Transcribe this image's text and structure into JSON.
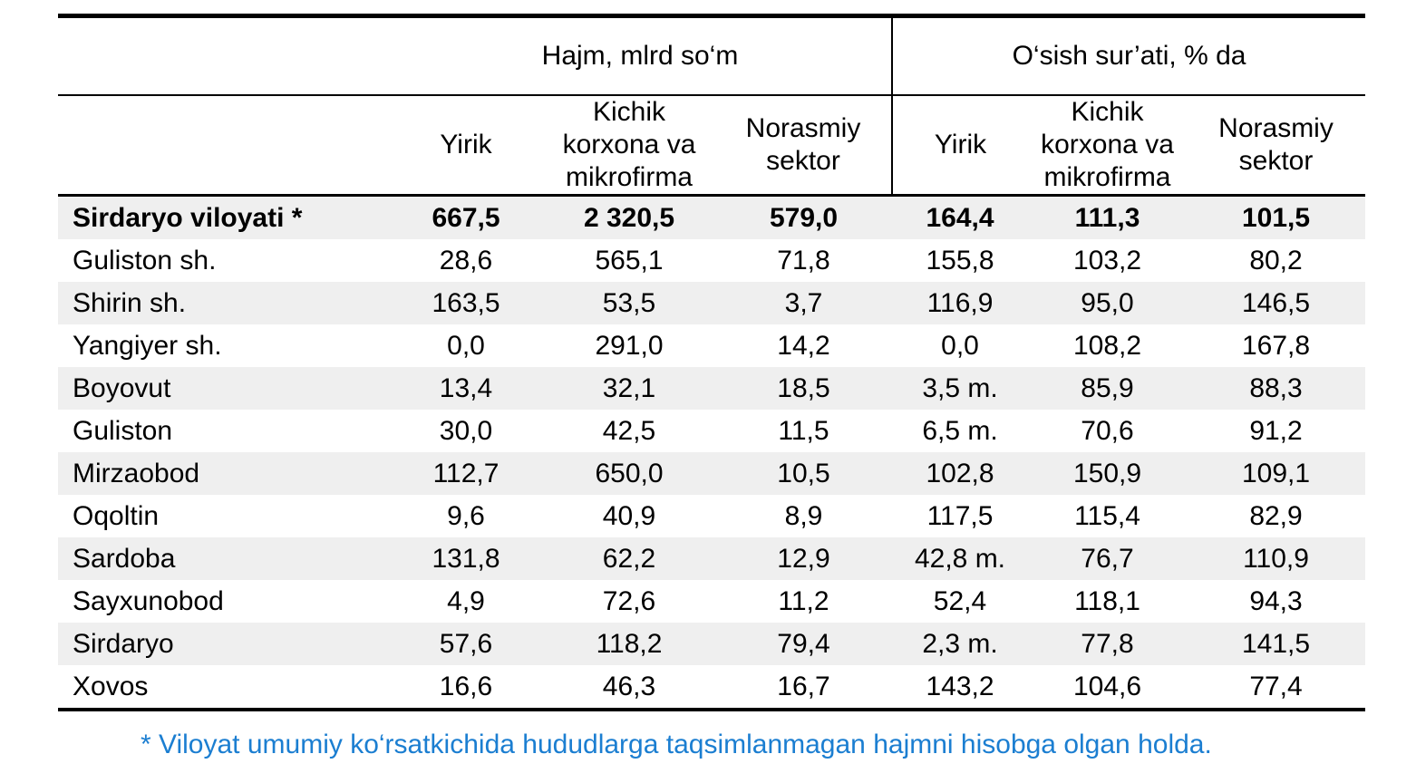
{
  "table": {
    "group_headers": [
      {
        "label": "Hajm, mlrd so‘m"
      },
      {
        "label": "O‘sish sur’ati, % da"
      }
    ],
    "sub_headers": [
      "Yirik",
      "Kichik korxona va mikrofirma",
      "Norasmiy sektor",
      "Yirik",
      "Kichik korxona va mikrofirma",
      "Norasmiy sektor"
    ],
    "rows": [
      {
        "name": "Sirdaryo viloyati *",
        "bold": true,
        "values": [
          "667,5",
          "2 320,5",
          "579,0",
          "164,4",
          "111,3",
          "101,5"
        ]
      },
      {
        "name": "Guliston sh.",
        "bold": false,
        "values": [
          "28,6",
          "565,1",
          "71,8",
          "155,8",
          "103,2",
          "80,2"
        ]
      },
      {
        "name": "Shirin sh.",
        "bold": false,
        "values": [
          "163,5",
          "53,5",
          "3,7",
          "116,9",
          "95,0",
          "146,5"
        ]
      },
      {
        "name": "Yangiyer sh.",
        "bold": false,
        "values": [
          "0,0",
          "291,0",
          "14,2",
          "0,0",
          "108,2",
          "167,8"
        ]
      },
      {
        "name": "Boyovut",
        "bold": false,
        "values": [
          "13,4",
          "32,1",
          "18,5",
          "3,5 m.",
          "85,9",
          "88,3"
        ]
      },
      {
        "name": "Guliston",
        "bold": false,
        "values": [
          "30,0",
          "42,5",
          "11,5",
          "6,5 m.",
          "70,6",
          "91,2"
        ]
      },
      {
        "name": "Mirzaobod",
        "bold": false,
        "values": [
          "112,7",
          "650,0",
          "10,5",
          "102,8",
          "150,9",
          "109,1"
        ]
      },
      {
        "name": "Oqoltin",
        "bold": false,
        "values": [
          "9,6",
          "40,9",
          "8,9",
          "117,5",
          "115,4",
          "82,9"
        ]
      },
      {
        "name": "Sardoba",
        "bold": false,
        "values": [
          "131,8",
          "62,2",
          "12,9",
          "42,8 m.",
          "76,7",
          "110,9"
        ]
      },
      {
        "name": "Sayxunobod",
        "bold": false,
        "values": [
          "4,9",
          "72,6",
          "11,2",
          "52,4",
          "118,1",
          "94,3"
        ]
      },
      {
        "name": "Sirdaryo",
        "bold": false,
        "values": [
          "57,6",
          "118,2",
          "79,4",
          "2,3 m.",
          "77,8",
          "141,5"
        ]
      },
      {
        "name": "Xovos",
        "bold": false,
        "values": [
          "16,6",
          "46,3",
          "16,7",
          "143,2",
          "104,6",
          "77,4"
        ]
      }
    ]
  },
  "footnote": "* Viloyat umumiy ko‘rsatkichida hududlarga taqsimlanmagan hajmni hisobga olgan holda.",
  "colors": {
    "row_alt": "#efefef",
    "footnote_blue": "#1b7ed1",
    "border": "#000000"
  }
}
